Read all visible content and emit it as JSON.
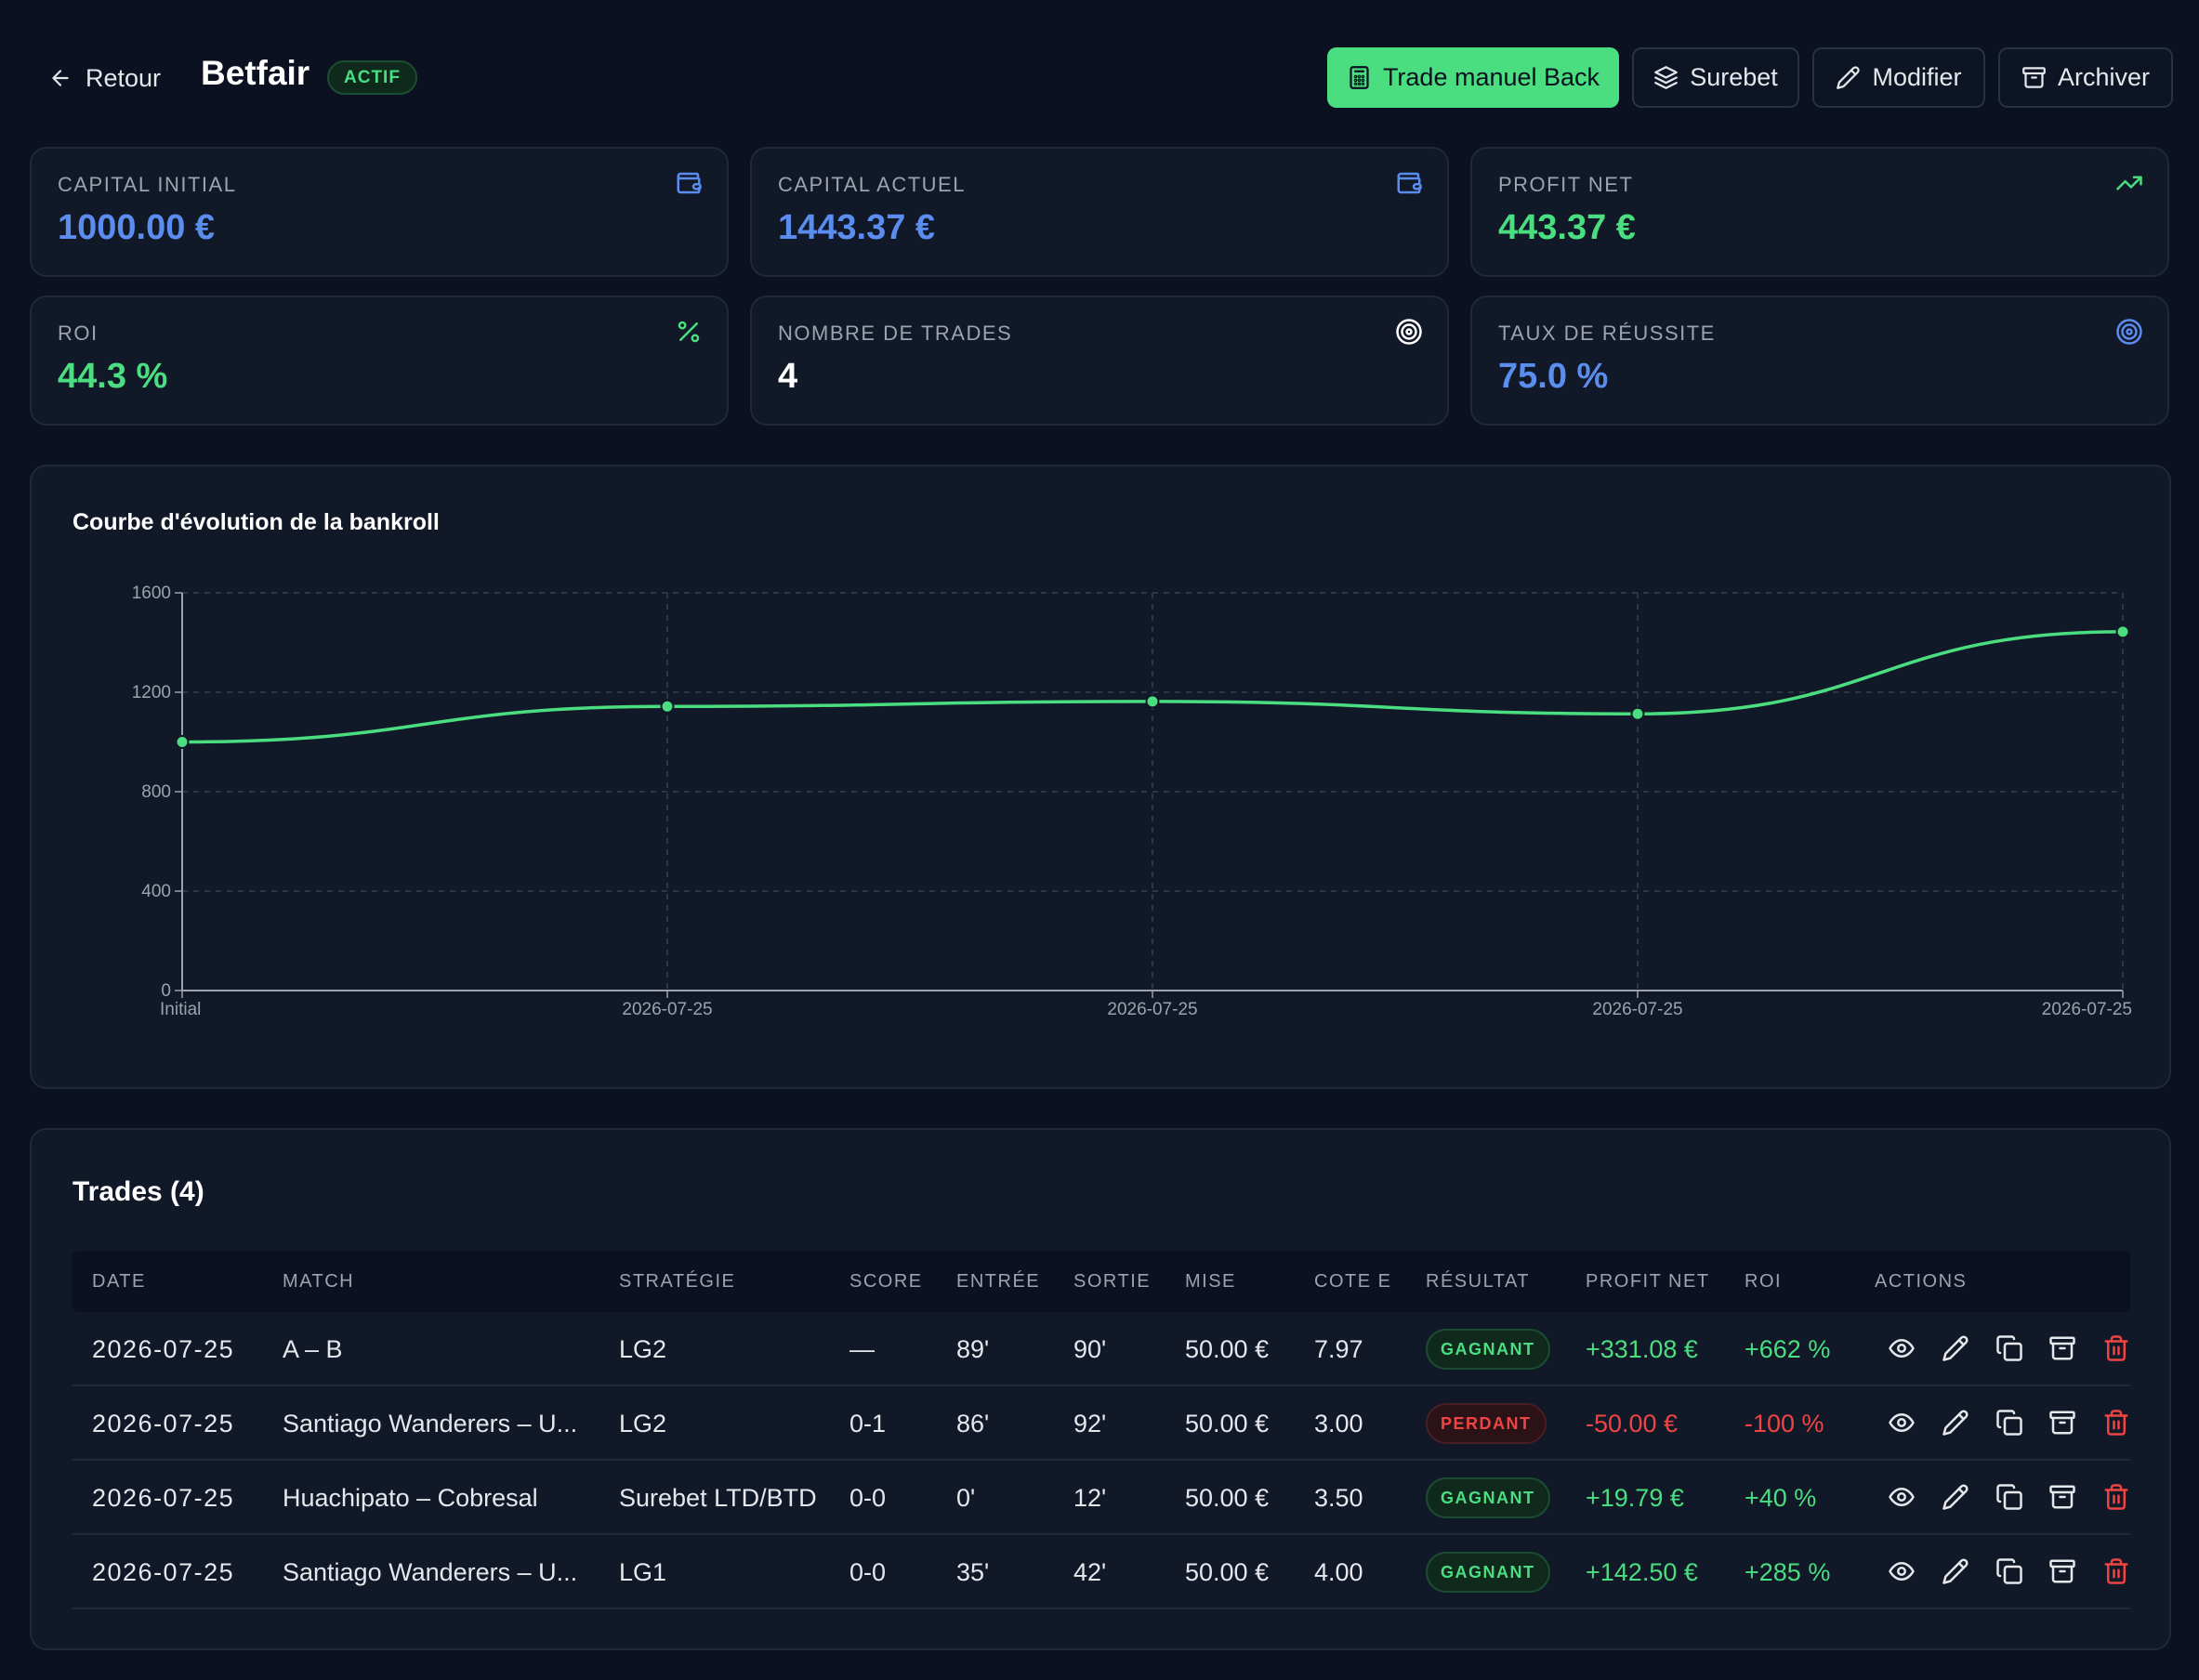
{
  "header": {
    "back_label": "Retour",
    "title": "Betfair",
    "status": "ACTIF",
    "buttons": {
      "trade_manual": "Trade manuel Back",
      "surebet": "Surebet",
      "modifier": "Modifier",
      "archiver": "Archiver"
    }
  },
  "stats": [
    {
      "label": "CAPITAL INITIAL",
      "value": "1000.00 €",
      "color": "#5b8def",
      "icon": "wallet-icon"
    },
    {
      "label": "CAPITAL ACTUEL",
      "value": "1443.37 €",
      "color": "#5b8def",
      "icon": "wallet-icon"
    },
    {
      "label": "PROFIT NET",
      "value": "443.37 €",
      "color": "#4ade80",
      "icon": "trending-up-icon"
    },
    {
      "label": "ROI",
      "value": "44.3 %",
      "color": "#4ade80",
      "icon": "percent-icon"
    },
    {
      "label": "NOMBRE DE TRADES",
      "value": "4",
      "color": "#ffffff",
      "icon": "target-icon"
    },
    {
      "label": "TAUX DE RÉUSSITE",
      "value": "75.0 %",
      "color": "#5b8def",
      "icon": "target-icon"
    }
  ],
  "chart": {
    "title": "Courbe d'évolution de la bankroll"
  },
  "chart_data": {
    "type": "line",
    "title": "Courbe d'évolution de la bankroll",
    "categories": [
      "Initial",
      "2026-07-25",
      "2026-07-25",
      "2026-07-25",
      "2026-07-25"
    ],
    "values": [
      1000,
      1143,
      1163,
      1113,
      1443.37
    ],
    "yticks": [
      0,
      400,
      800,
      1200,
      1600
    ],
    "ylim": [
      0,
      1600
    ],
    "grid": true,
    "line_color": "#4ade80"
  },
  "trades": {
    "title": "Trades (4)",
    "columns": [
      "DATE",
      "MATCH",
      "STRATÉGIE",
      "SCORE",
      "ENTRÉE",
      "SORTIE",
      "MISE",
      "COTE E",
      "RÉSULTAT",
      "PROFIT NET",
      "ROI",
      "ACTIONS"
    ],
    "rows": [
      {
        "date": "2026-07-25",
        "match": "A – B",
        "strategy": "LG2",
        "score": "—",
        "entry": "89'",
        "exit": "90'",
        "stake": "50.00 €",
        "odds": "7.97",
        "result": "GAGNANT",
        "profit": "+331.08 €",
        "roi": "+662 %"
      },
      {
        "date": "2026-07-25",
        "match": "Santiago Wanderers – U...",
        "strategy": "LG2",
        "score": "0-1",
        "entry": "86'",
        "exit": "92'",
        "stake": "50.00 €",
        "odds": "3.00",
        "result": "PERDANT",
        "profit": "-50.00 €",
        "roi": "-100 %"
      },
      {
        "date": "2026-07-25",
        "match": "Huachipato – Cobresal",
        "strategy": "Surebet LTD/BTD",
        "score": "0-0",
        "entry": "0'",
        "exit": "12'",
        "stake": "50.00 €",
        "odds": "3.50",
        "result": "GAGNANT",
        "profit": "+19.79 €",
        "roi": "+40 %"
      },
      {
        "date": "2026-07-25",
        "match": "Santiago Wanderers – U...",
        "strategy": "LG1",
        "score": "0-0",
        "entry": "35'",
        "exit": "42'",
        "stake": "50.00 €",
        "odds": "4.00",
        "result": "GAGNANT",
        "profit": "+142.50 €",
        "roi": "+285 %"
      }
    ]
  }
}
